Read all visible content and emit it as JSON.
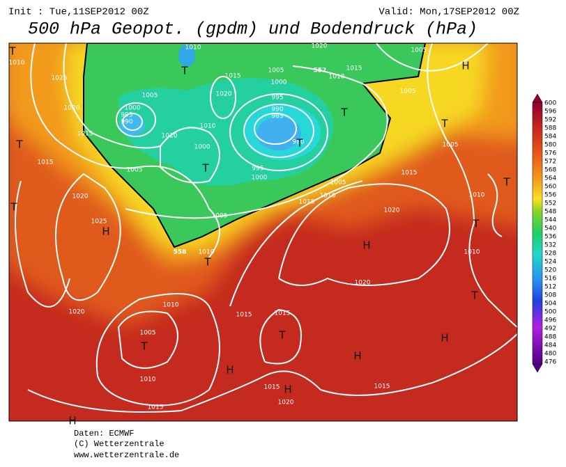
{
  "header": {
    "init": "Init : Tue,11SEP2012 00Z",
    "valid": "Valid: Mon,17SEP2012 00Z",
    "title": "500 hPa Geopot. (gpdm) und Bodendruck (hPa)"
  },
  "colorbar": {
    "labels": [
      600,
      596,
      592,
      588,
      584,
      580,
      576,
      572,
      568,
      564,
      560,
      556,
      552,
      548,
      544,
      540,
      536,
      532,
      528,
      524,
      520,
      516,
      512,
      508,
      504,
      500,
      496,
      492,
      488,
      484,
      480,
      476
    ]
  },
  "map": {
    "isobar_labels": [
      "1010",
      "1025",
      "1020",
      "1015",
      "1015",
      "1005",
      "1020",
      "1025",
      "1020",
      "1010",
      "1005",
      "1010",
      "1015",
      "1015",
      "1015",
      "1015",
      "1020",
      "1015",
      "1020",
      "1020",
      "1015",
      "1005",
      "1010",
      "1015",
      "1005",
      "1010",
      "995",
      "1000",
      "980",
      "990",
      "985",
      "995",
      "1000",
      "1005",
      "1015",
      "1020",
      "1010",
      "1000",
      "1010",
      "1005",
      "1000",
      "995",
      "990",
      "1010",
      "1010",
      "1015",
      "1005",
      "1005",
      "1005",
      "1010",
      "1010",
      "1020"
    ],
    "contour_labels": [
      "552",
      "558"
    ],
    "centers": [
      "T",
      "T",
      "T",
      "T",
      "T",
      "T",
      "T",
      "T",
      "T",
      "T",
      "T",
      "T",
      "T",
      "T",
      "H",
      "H",
      "H",
      "H",
      "H",
      "H",
      "H",
      "H"
    ]
  },
  "footer": [
    "Daten: ECMWF",
    "(C) Wetterzentrale",
    "www.wetterzentrale.de"
  ]
}
